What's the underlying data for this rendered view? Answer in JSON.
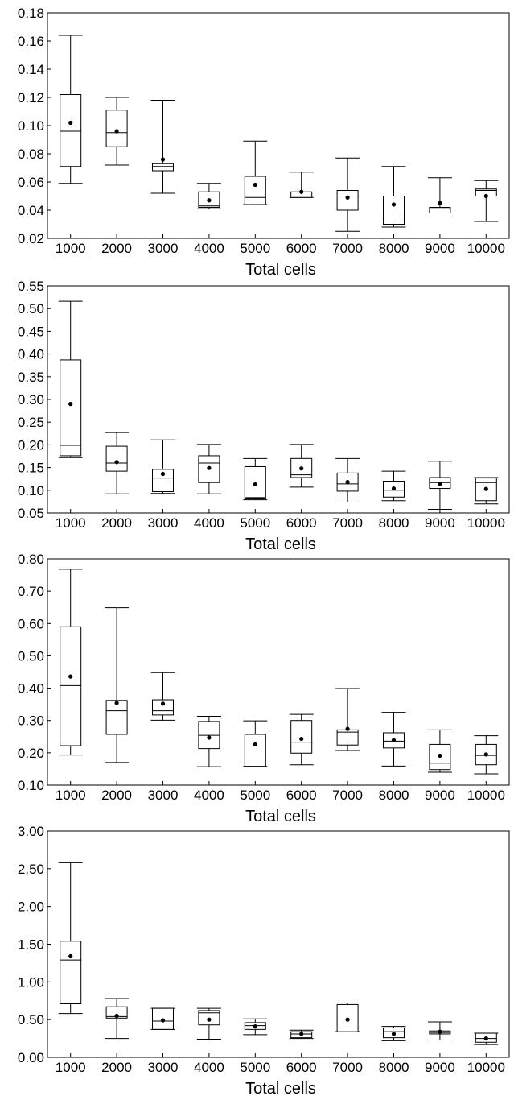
{
  "chart_data": [
    {
      "type": "box",
      "xlabel": "Total cells",
      "ylabel": "",
      "categories": [
        "1000",
        "2000",
        "3000",
        "4000",
        "5000",
        "6000",
        "7000",
        "8000",
        "9000",
        "10000"
      ],
      "ylim": [
        0.02,
        0.18
      ],
      "yticks": [
        "0.02",
        "0.04",
        "0.06",
        "0.08",
        "0.10",
        "0.12",
        "0.14",
        "0.16",
        "0.18"
      ],
      "boxes": [
        {
          "min": 0.059,
          "q1": 0.071,
          "median": 0.096,
          "q3": 0.122,
          "max": 0.164,
          "mean": 0.102
        },
        {
          "min": 0.072,
          "q1": 0.085,
          "median": 0.095,
          "q3": 0.111,
          "max": 0.12,
          "mean": 0.096
        },
        {
          "min": 0.052,
          "q1": 0.068,
          "median": 0.071,
          "q3": 0.073,
          "max": 0.118,
          "mean": 0.076
        },
        {
          "min": 0.041,
          "q1": 0.042,
          "median": 0.043,
          "q3": 0.053,
          "max": 0.059,
          "mean": 0.047
        },
        {
          "min": 0.044,
          "q1": 0.044,
          "median": 0.049,
          "q3": 0.064,
          "max": 0.089,
          "mean": 0.058
        },
        {
          "min": 0.049,
          "q1": 0.049,
          "median": 0.05,
          "q3": 0.053,
          "max": 0.067,
          "mean": 0.053
        },
        {
          "min": 0.025,
          "q1": 0.04,
          "median": 0.05,
          "q3": 0.054,
          "max": 0.077,
          "mean": 0.049
        },
        {
          "min": 0.028,
          "q1": 0.03,
          "median": 0.038,
          "q3": 0.05,
          "max": 0.071,
          "mean": 0.044
        },
        {
          "min": 0.038,
          "q1": 0.038,
          "median": 0.041,
          "q3": 0.042,
          "max": 0.063,
          "mean": 0.045
        },
        {
          "min": 0.032,
          "q1": 0.05,
          "median": 0.054,
          "q3": 0.055,
          "max": 0.061,
          "mean": 0.05
        }
      ]
    },
    {
      "type": "box",
      "xlabel": "Total cells",
      "ylabel": "",
      "categories": [
        "1000",
        "2000",
        "3000",
        "4000",
        "5000",
        "6000",
        "7000",
        "8000",
        "9000",
        "10000"
      ],
      "ylim": [
        0.05,
        0.55
      ],
      "yticks": [
        "0.05",
        "0.10",
        "0.15",
        "0.20",
        "0.25",
        "0.30",
        "0.35",
        "0.40",
        "0.45",
        "0.50",
        "0.55"
      ],
      "boxes": [
        {
          "min": 0.172,
          "q1": 0.176,
          "median": 0.199,
          "q3": 0.387,
          "max": 0.516,
          "mean": 0.29
        },
        {
          "min": 0.092,
          "q1": 0.142,
          "median": 0.16,
          "q3": 0.197,
          "max": 0.227,
          "mean": 0.162
        },
        {
          "min": 0.093,
          "q1": 0.097,
          "median": 0.127,
          "q3": 0.146,
          "max": 0.211,
          "mean": 0.136
        },
        {
          "min": 0.092,
          "q1": 0.117,
          "median": 0.16,
          "q3": 0.176,
          "max": 0.201,
          "mean": 0.149
        },
        {
          "min": 0.079,
          "q1": 0.081,
          "median": 0.084,
          "q3": 0.152,
          "max": 0.17,
          "mean": 0.113
        },
        {
          "min": 0.107,
          "q1": 0.128,
          "median": 0.134,
          "q3": 0.17,
          "max": 0.201,
          "mean": 0.148
        },
        {
          "min": 0.074,
          "q1": 0.098,
          "median": 0.114,
          "q3": 0.138,
          "max": 0.17,
          "mean": 0.118
        },
        {
          "min": 0.077,
          "q1": 0.085,
          "median": 0.1,
          "q3": 0.12,
          "max": 0.142,
          "mean": 0.104
        },
        {
          "min": 0.058,
          "q1": 0.104,
          "median": 0.117,
          "q3": 0.128,
          "max": 0.164,
          "mean": 0.114
        },
        {
          "min": 0.07,
          "q1": 0.077,
          "median": 0.117,
          "q3": 0.127,
          "max": 0.128,
          "mean": 0.103
        }
      ]
    },
    {
      "type": "box",
      "xlabel": "Total cells",
      "ylabel": "",
      "categories": [
        "1000",
        "2000",
        "3000",
        "4000",
        "5000",
        "6000",
        "7000",
        "8000",
        "9000",
        "10000"
      ],
      "ylim": [
        0.1,
        0.8
      ],
      "yticks": [
        "0.10",
        "0.20",
        "0.30",
        "0.40",
        "0.50",
        "0.60",
        "0.70",
        "0.80"
      ],
      "boxes": [
        {
          "min": 0.193,
          "q1": 0.222,
          "median": 0.408,
          "q3": 0.59,
          "max": 0.768,
          "mean": 0.436
        },
        {
          "min": 0.17,
          "q1": 0.257,
          "median": 0.33,
          "q3": 0.362,
          "max": 0.649,
          "mean": 0.354
        },
        {
          "min": 0.301,
          "q1": 0.317,
          "median": 0.33,
          "q3": 0.364,
          "max": 0.448,
          "mean": 0.352
        },
        {
          "min": 0.157,
          "q1": 0.213,
          "median": 0.254,
          "q3": 0.297,
          "max": 0.313,
          "mean": 0.247
        },
        {
          "min": 0.158,
          "q1": 0.158,
          "median": 0.158,
          "q3": 0.257,
          "max": 0.299,
          "mean": 0.226
        },
        {
          "min": 0.163,
          "q1": 0.199,
          "median": 0.233,
          "q3": 0.3,
          "max": 0.319,
          "mean": 0.243
        },
        {
          "min": 0.207,
          "q1": 0.224,
          "median": 0.264,
          "q3": 0.271,
          "max": 0.399,
          "mean": 0.274
        },
        {
          "min": 0.159,
          "q1": 0.215,
          "median": 0.236,
          "q3": 0.262,
          "max": 0.325,
          "mean": 0.239
        },
        {
          "min": 0.14,
          "q1": 0.148,
          "median": 0.168,
          "q3": 0.226,
          "max": 0.271,
          "mean": 0.191
        },
        {
          "min": 0.135,
          "q1": 0.163,
          "median": 0.192,
          "q3": 0.226,
          "max": 0.253,
          "mean": 0.195
        }
      ]
    },
    {
      "type": "box",
      "xlabel": "Total cells",
      "ylabel": "",
      "categories": [
        "1000",
        "2000",
        "3000",
        "4000",
        "5000",
        "6000",
        "7000",
        "8000",
        "9000",
        "10000"
      ],
      "ylim": [
        0.0,
        3.0
      ],
      "yticks": [
        "0.00",
        "0.50",
        "1.00",
        "1.50",
        "2.00",
        "2.50",
        "3.00"
      ],
      "boxes": [
        {
          "min": 0.58,
          "q1": 0.71,
          "median": 1.29,
          "q3": 1.54,
          "max": 2.58,
          "mean": 1.34
        },
        {
          "min": 0.25,
          "q1": 0.52,
          "median": 0.54,
          "q3": 0.67,
          "max": 0.78,
          "mean": 0.55
        },
        {
          "min": 0.37,
          "q1": 0.37,
          "median": 0.48,
          "q3": 0.65,
          "max": 0.65,
          "mean": 0.49
        },
        {
          "min": 0.24,
          "q1": 0.43,
          "median": 0.59,
          "q3": 0.62,
          "max": 0.65,
          "mean": 0.5
        },
        {
          "min": 0.3,
          "q1": 0.37,
          "median": 0.42,
          "q3": 0.46,
          "max": 0.51,
          "mean": 0.41
        },
        {
          "min": 0.25,
          "q1": 0.26,
          "median": 0.31,
          "q3": 0.34,
          "max": 0.36,
          "mean": 0.31
        },
        {
          "min": 0.34,
          "q1": 0.34,
          "median": 0.39,
          "q3": 0.7,
          "max": 0.72,
          "mean": 0.5
        },
        {
          "min": 0.22,
          "q1": 0.26,
          "median": 0.34,
          "q3": 0.39,
          "max": 0.41,
          "mean": 0.31
        },
        {
          "min": 0.23,
          "q1": 0.31,
          "median": 0.33,
          "q3": 0.35,
          "max": 0.47,
          "mean": 0.34
        },
        {
          "min": 0.17,
          "q1": 0.2,
          "median": 0.25,
          "q3": 0.32,
          "max": 0.32,
          "mean": 0.25
        }
      ]
    }
  ]
}
